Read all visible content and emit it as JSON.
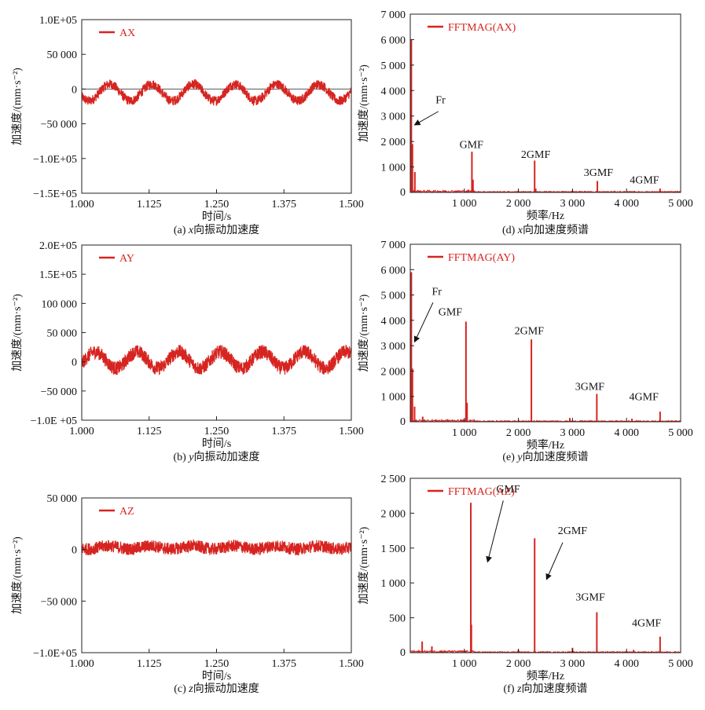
{
  "colors": {
    "signal": "#d62420",
    "axis": "#222222",
    "zero_line": "#555555"
  },
  "chart_data": [
    {
      "id": "a",
      "type": "line",
      "caption_prefix": "(a) ",
      "caption_var": "x",
      "caption_rest": "向振动加速度",
      "xlabel": "时间/s",
      "ylabel": "加速度/(mm·s⁻²)",
      "xlim": [
        1.0,
        1.5
      ],
      "ylim": [
        -150000,
        100000
      ],
      "xticks": [
        1.0,
        1.125,
        1.25,
        1.375,
        1.5
      ],
      "xtick_labels": [
        "1.000",
        "1.125",
        "1.250",
        "1.375",
        "1.500"
      ],
      "yticks": [
        -150000,
        -100000,
        -50000,
        0,
        50000,
        100000
      ],
      "ytick_labels": [
        "−1.5E+05",
        "−1.0E+05",
        "−50 000",
        "0",
        "50 000",
        "1.0E+05"
      ],
      "series": [
        {
          "name": "AX",
          "offset": -5000,
          "amplitude": 12000,
          "period": 0.0775,
          "phase": 1.052,
          "noise": 7000
        }
      ],
      "zero_line": true
    },
    {
      "id": "b",
      "type": "line",
      "caption_prefix": "(b) ",
      "caption_var": "y",
      "caption_rest": "向振动加速度",
      "xlabel": "时间/s",
      "ylabel": "加速度/(mm·s⁻²)",
      "xlim": [
        1.0,
        1.5
      ],
      "ylim": [
        -100000,
        200000
      ],
      "xticks": [
        1.0,
        1.125,
        1.25,
        1.375,
        1.5
      ],
      "xtick_labels": [
        "1.000",
        "1.125",
        "1.250",
        "1.375",
        "1.500"
      ],
      "yticks": [
        -100000,
        -50000,
        0,
        50000,
        100000,
        150000,
        200000
      ],
      "ytick_labels": [
        "−1.0E +05",
        "−50 000",
        "0",
        "50 000",
        "100 000",
        "1.5E+05",
        "2.0E+05"
      ],
      "series": [
        {
          "name": "AY",
          "offset": 3000,
          "amplitude": 14000,
          "period": 0.0775,
          "phase": 1.025,
          "noise": 12000
        }
      ],
      "zero_line": false
    },
    {
      "id": "c",
      "type": "line",
      "caption_prefix": "(c) ",
      "caption_var": "z",
      "caption_rest": "向振动加速度",
      "xlabel": "时间/s",
      "ylabel": "加速度/(mm·s⁻²)",
      "xlim": [
        1.0,
        1.5
      ],
      "ylim": [
        -100000,
        50000
      ],
      "xticks": [
        1.0,
        1.125,
        1.25,
        1.375,
        1.5
      ],
      "xtick_labels": [
        "1.000",
        "1.125",
        "1.250",
        "1.375",
        "1.500"
      ],
      "yticks": [
        -100000,
        -50000,
        0,
        50000
      ],
      "ytick_labels": [
        "−1.0E+05",
        "−50 000",
        "0",
        "50 000"
      ],
      "series": [
        {
          "name": "AZ",
          "offset": 2000,
          "amplitude": 1500,
          "period": 0.0775,
          "phase": 1.05,
          "noise": 6000
        }
      ],
      "zero_line": false
    },
    {
      "id": "d",
      "type": "line",
      "caption_prefix": "(d) ",
      "caption_var": "x",
      "caption_rest": "向加速度频谱",
      "xlabel": "频率/Hz",
      "ylabel": "加速度/(mm·s⁻²)",
      "xlim": [
        0,
        5000
      ],
      "ylim": [
        0,
        7000
      ],
      "xticks": [
        1000,
        2000,
        3000,
        4000,
        5000
      ],
      "xtick_labels": [
        "1 000",
        "2 000",
        "3 000",
        "4 000",
        "5 000"
      ],
      "yticks": [
        1000,
        2000,
        3000,
        4000,
        5000,
        6000,
        7000
      ],
      "ytick_labels": [
        "1 000",
        "2 000",
        "3 000",
        "4 000",
        "5 000",
        "6 000",
        "7 000"
      ],
      "series": [
        {
          "name": "FFTMAG(AX)"
        }
      ],
      "peaks": [
        [
          20,
          6000
        ],
        [
          40,
          1900
        ],
        [
          85,
          800
        ],
        [
          1140,
          1600
        ],
        [
          1160,
          500
        ],
        [
          2300,
          1250
        ],
        [
          2320,
          150
        ],
        [
          3460,
          450
        ],
        [
          3000,
          80
        ],
        [
          4620,
          150
        ],
        [
          4140,
          60
        ],
        [
          2000,
          70
        ]
      ],
      "annotations": [
        {
          "text": "Fr",
          "tx": 560,
          "ty": 3500,
          "arrow_from": [
            520,
            3180
          ],
          "arrow_to": [
            80,
            2650
          ]
        },
        {
          "text": "GMF",
          "tx": 1130,
          "ty": 1750
        },
        {
          "text": "2GMF",
          "tx": 2320,
          "ty": 1350
        },
        {
          "text": "3GMF",
          "tx": 3480,
          "ty": 650
        },
        {
          "text": "4GMF",
          "tx": 4330,
          "ty": 350
        }
      ]
    },
    {
      "id": "e",
      "type": "line",
      "caption_prefix": "(e) ",
      "caption_var": "y",
      "caption_rest": "向加速度频谱",
      "xlabel": "频率/Hz",
      "ylabel": "加速度/(mm·s⁻²)",
      "xlim": [
        0,
        5000
      ],
      "ylim": [
        0,
        7000
      ],
      "xticks": [
        1000,
        2000,
        3000,
        4000,
        5000
      ],
      "xtick_labels": [
        "1 000",
        "2 000",
        "3 000",
        "4 000",
        "5 000"
      ],
      "yticks": [
        1000,
        2000,
        3000,
        4000,
        5000,
        6000,
        7000
      ],
      "ytick_labels": [
        "1 000",
        "2 000",
        "3 000",
        "4 000",
        "5 000",
        "6 000",
        "7 000"
      ],
      "series": [
        {
          "name": "FFTMAG(AY)"
        }
      ],
      "peaks": [
        [
          20,
          5900
        ],
        [
          40,
          2100
        ],
        [
          80,
          600
        ],
        [
          1030,
          3950
        ],
        [
          1050,
          750
        ],
        [
          2240,
          3250
        ],
        [
          3450,
          1100
        ],
        [
          2950,
          150
        ],
        [
          4620,
          400
        ],
        [
          4100,
          120
        ],
        [
          230,
          200
        ]
      ],
      "annotations": [
        {
          "text": "Fr",
          "tx": 490,
          "ty": 5000,
          "arrow_from": [
            420,
            4700
          ],
          "arrow_to": [
            80,
            3150
          ]
        },
        {
          "text": "GMF",
          "tx": 740,
          "ty": 4200
        },
        {
          "text": "2GMF",
          "tx": 2200,
          "ty": 3450
        },
        {
          "text": "3GMF",
          "tx": 3320,
          "ty": 1250
        },
        {
          "text": "4GMF",
          "tx": 4320,
          "ty": 850
        }
      ]
    },
    {
      "id": "f",
      "type": "line",
      "caption_prefix": "(f) ",
      "caption_var": "z",
      "caption_rest": "向加速度频谱",
      "xlabel": "频率/Hz",
      "ylabel": "加速度/(mm·s⁻²)",
      "xlim": [
        0,
        5000
      ],
      "ylim": [
        0,
        2500
      ],
      "xticks": [
        1000,
        2000,
        3000,
        4000,
        5000
      ],
      "xtick_labels": [
        "1 000",
        "2 000",
        "3 000",
        "4 000",
        "5 000"
      ],
      "yticks": [
        500,
        1000,
        1500,
        2000,
        2500
      ],
      "ytick_labels": [
        "500",
        "1 000",
        "1 500",
        "2 000",
        "2 500"
      ],
      "series": [
        {
          "name": "FFTMAG(AZ)"
        }
      ],
      "peaks": [
        [
          1120,
          2150
        ],
        [
          1130,
          400
        ],
        [
          2300,
          1640
        ],
        [
          3450,
          580
        ],
        [
          3000,
          70
        ],
        [
          4620,
          230
        ],
        [
          4130,
          40
        ],
        [
          220,
          160
        ],
        [
          400,
          90
        ],
        [
          2000,
          40
        ]
      ],
      "annotations": [
        {
          "text": "GMF",
          "tx": 1810,
          "ty": 2300,
          "arrow_from": [
            1720,
            2180
          ],
          "arrow_to": [
            1430,
            1300
          ]
        },
        {
          "text": "2GMF",
          "tx": 3000,
          "ty": 1700,
          "arrow_from": [
            2820,
            1580
          ],
          "arrow_to": [
            2520,
            1050
          ]
        },
        {
          "text": "3GMF",
          "tx": 3330,
          "ty": 750
        },
        {
          "text": "4GMF",
          "tx": 4370,
          "ty": 380
        }
      ]
    }
  ]
}
